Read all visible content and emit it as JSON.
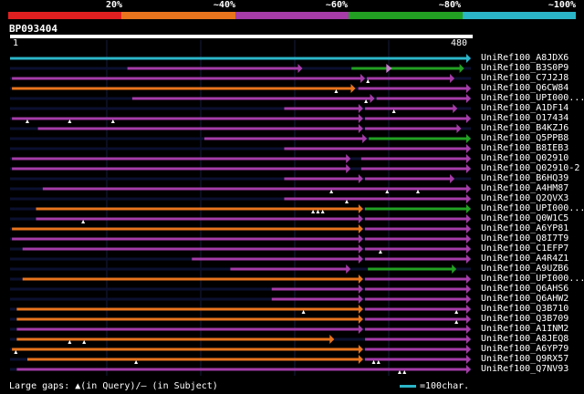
{
  "legend": {
    "labels": [
      "20%",
      "~40%",
      "~60%",
      "~80%",
      "~100%"
    ],
    "colors": [
      "#e02020",
      "#e8741e",
      "#a53ca8",
      "#22a022",
      "#2bb5c8"
    ]
  },
  "query": {
    "id": "BP093404",
    "start": "1",
    "end": "480",
    "length": 480
  },
  "footer": {
    "gaps_text": "Large gaps: ▲(in Query)/– (in Subject)",
    "scale_text": "=100char."
  },
  "hits": [
    {
      "name": "UniRef100_A8JDX6",
      "segments": [
        {
          "start": 1,
          "end": 480,
          "color": "#2bb5c8"
        }
      ],
      "markers": []
    },
    {
      "name": "UniRef100_B3S0P9",
      "segments": [
        {
          "start": 123,
          "end": 305,
          "color": "#a53ca8"
        },
        {
          "start": 356,
          "end": 473,
          "color": "#22a022"
        }
      ],
      "markers": [
        {
          "pos": 395,
          "type": "arrow"
        }
      ]
    },
    {
      "name": "UniRef100_C7J2J8",
      "segments": [
        {
          "start": 3,
          "end": 370,
          "color": "#a53ca8"
        },
        {
          "start": 372,
          "end": 463,
          "color": "#a53ca8"
        }
      ],
      "markers": [
        {
          "pos": 373,
          "type": "tri"
        }
      ]
    },
    {
      "name": "UniRef100_Q6CW84",
      "segments": [
        {
          "start": 3,
          "end": 360,
          "color": "#e8741e"
        },
        {
          "start": 363,
          "end": 480,
          "color": "#a53ca8"
        }
      ],
      "markers": [
        {
          "pos": 340,
          "type": "tri"
        }
      ]
    },
    {
      "name": "UniRef100_UPI000...",
      "segments": [
        {
          "start": 128,
          "end": 380,
          "color": "#a53ca8"
        },
        {
          "start": 382,
          "end": 480,
          "color": "#a53ca8"
        }
      ],
      "markers": [
        {
          "pos": 371,
          "type": "tri"
        }
      ]
    },
    {
      "name": "UniRef100_A1DF14",
      "segments": [
        {
          "start": 286,
          "end": 368,
          "color": "#a53ca8"
        },
        {
          "start": 370,
          "end": 466,
          "color": "#a53ca8"
        }
      ],
      "markers": [
        {
          "pos": 400,
          "type": "tri"
        }
      ]
    },
    {
      "name": "UniRef100_O17434",
      "segments": [
        {
          "start": 3,
          "end": 368,
          "color": "#a53ca8"
        },
        {
          "start": 370,
          "end": 480,
          "color": "#a53ca8"
        }
      ],
      "markers": [
        {
          "pos": 19,
          "type": "tri"
        },
        {
          "pos": 63,
          "type": "tri"
        },
        {
          "pos": 108,
          "type": "tri"
        }
      ]
    },
    {
      "name": "UniRef100_B4KZJ6",
      "segments": [
        {
          "start": 30,
          "end": 368,
          "color": "#a53ca8"
        },
        {
          "start": 370,
          "end": 470,
          "color": "#a53ca8"
        }
      ],
      "markers": []
    },
    {
      "name": "UniRef100_Q5PPB8",
      "segments": [
        {
          "start": 203,
          "end": 372,
          "color": "#a53ca8"
        },
        {
          "start": 374,
          "end": 480,
          "color": "#22a022"
        }
      ],
      "markers": []
    },
    {
      "name": "UniRef100_B8IEB3",
      "segments": [
        {
          "start": 286,
          "end": 480,
          "color": "#a53ca8"
        }
      ],
      "markers": []
    },
    {
      "name": "UniRef100_Q02910",
      "segments": [
        {
          "start": 3,
          "end": 355,
          "color": "#a53ca8"
        },
        {
          "start": 366,
          "end": 480,
          "color": "#a53ca8"
        }
      ],
      "markers": []
    },
    {
      "name": "UniRef100_Q02910-2",
      "segments": [
        {
          "start": 3,
          "end": 355,
          "color": "#a53ca8"
        },
        {
          "start": 366,
          "end": 480,
          "color": "#a53ca8"
        }
      ],
      "markers": []
    },
    {
      "name": "UniRef100_B6HQ39",
      "segments": [
        {
          "start": 286,
          "end": 368,
          "color": "#a53ca8"
        },
        {
          "start": 370,
          "end": 463,
          "color": "#a53ca8"
        }
      ],
      "markers": []
    },
    {
      "name": "UniRef100_A4HM87",
      "segments": [
        {
          "start": 35,
          "end": 480,
          "color": "#a53ca8"
        }
      ],
      "markers": [
        {
          "pos": 335,
          "type": "tri"
        },
        {
          "pos": 393,
          "type": "tri"
        },
        {
          "pos": 425,
          "type": "tri"
        }
      ]
    },
    {
      "name": "UniRef100_Q2QVX3",
      "segments": [
        {
          "start": 286,
          "end": 480,
          "color": "#a53ca8"
        }
      ],
      "markers": [
        {
          "pos": 351,
          "type": "tri"
        }
      ]
    },
    {
      "name": "UniRef100_UPI000...",
      "segments": [
        {
          "start": 28,
          "end": 368,
          "color": "#e8741e"
        },
        {
          "start": 370,
          "end": 480,
          "color": "#22a022"
        }
      ],
      "markers": [
        {
          "pos": 316,
          "type": "tri"
        },
        {
          "pos": 321,
          "type": "tri"
        },
        {
          "pos": 326,
          "type": "tri"
        }
      ]
    },
    {
      "name": "UniRef100_Q0W1C5",
      "segments": [
        {
          "start": 28,
          "end": 368,
          "color": "#a53ca8"
        },
        {
          "start": 370,
          "end": 480,
          "color": "#a53ca8"
        }
      ],
      "markers": [
        {
          "pos": 77,
          "type": "tri"
        }
      ]
    },
    {
      "name": "UniRef100_A6YP81",
      "segments": [
        {
          "start": 3,
          "end": 368,
          "color": "#e8741e"
        },
        {
          "start": 370,
          "end": 480,
          "color": "#a53ca8"
        }
      ],
      "markers": []
    },
    {
      "name": "UniRef100_Q8I7T9",
      "segments": [
        {
          "start": 3,
          "end": 368,
          "color": "#a53ca8"
        },
        {
          "start": 370,
          "end": 480,
          "color": "#a53ca8"
        }
      ],
      "markers": []
    },
    {
      "name": "UniRef100_C1EFP7",
      "segments": [
        {
          "start": 14,
          "end": 368,
          "color": "#a53ca8"
        },
        {
          "start": 370,
          "end": 480,
          "color": "#a53ca8"
        }
      ],
      "markers": [
        {
          "pos": 386,
          "type": "tri"
        }
      ]
    },
    {
      "name": "UniRef100_A4R4Z1",
      "segments": [
        {
          "start": 190,
          "end": 368,
          "color": "#a53ca8"
        },
        {
          "start": 370,
          "end": 480,
          "color": "#a53ca8"
        }
      ],
      "markers": []
    },
    {
      "name": "UniRef100_A9UZB6",
      "segments": [
        {
          "start": 230,
          "end": 355,
          "color": "#a53ca8"
        },
        {
          "start": 373,
          "end": 465,
          "color": "#22a022"
        }
      ],
      "markers": []
    },
    {
      "name": "UniRef100_UPI000...",
      "segments": [
        {
          "start": 14,
          "end": 368,
          "color": "#e8741e"
        },
        {
          "start": 370,
          "end": 480,
          "color": "#a53ca8"
        }
      ],
      "markers": []
    },
    {
      "name": "UniRef100_Q6AHS6",
      "segments": [
        {
          "start": 273,
          "end": 368,
          "color": "#a53ca8"
        },
        {
          "start": 370,
          "end": 480,
          "color": "#a53ca8"
        }
      ],
      "markers": []
    },
    {
      "name": "UniRef100_Q6AHW2",
      "segments": [
        {
          "start": 273,
          "end": 368,
          "color": "#a53ca8"
        },
        {
          "start": 370,
          "end": 480,
          "color": "#a53ca8"
        }
      ],
      "markers": []
    },
    {
      "name": "UniRef100_Q3B710",
      "segments": [
        {
          "start": 8,
          "end": 368,
          "color": "#e8741e"
        },
        {
          "start": 370,
          "end": 480,
          "color": "#a53ca8"
        }
      ],
      "markers": [
        {
          "pos": 306,
          "type": "tri"
        },
        {
          "pos": 465,
          "type": "tri"
        }
      ]
    },
    {
      "name": "UniRef100_Q3B709",
      "segments": [
        {
          "start": 8,
          "end": 368,
          "color": "#e8741e"
        },
        {
          "start": 370,
          "end": 480,
          "color": "#a53ca8"
        }
      ],
      "markers": [
        {
          "pos": 465,
          "type": "tri"
        }
      ]
    },
    {
      "name": "UniRef100_A1INM2",
      "segments": [
        {
          "start": 8,
          "end": 368,
          "color": "#a53ca8"
        },
        {
          "start": 370,
          "end": 480,
          "color": "#a53ca8"
        }
      ],
      "markers": []
    },
    {
      "name": "UniRef100_A8JEQ8",
      "segments": [
        {
          "start": 8,
          "end": 338,
          "color": "#e8741e"
        },
        {
          "start": 370,
          "end": 480,
          "color": "#a53ca8"
        }
      ],
      "markers": [
        {
          "pos": 63,
          "type": "tri"
        },
        {
          "pos": 78,
          "type": "tri"
        }
      ]
    },
    {
      "name": "UniRef100_A6YP79",
      "segments": [
        {
          "start": 3,
          "end": 368,
          "color": "#e8741e"
        },
        {
          "start": 370,
          "end": 480,
          "color": "#a53ca8"
        }
      ],
      "markers": [
        {
          "pos": 7,
          "type": "tri"
        }
      ]
    },
    {
      "name": "UniRef100_Q9RX57",
      "segments": [
        {
          "start": 19,
          "end": 368,
          "color": "#e8741e"
        },
        {
          "start": 370,
          "end": 480,
          "color": "#a53ca8"
        }
      ],
      "markers": [
        {
          "pos": 132,
          "type": "tri"
        },
        {
          "pos": 379,
          "type": "tri"
        },
        {
          "pos": 384,
          "type": "tri"
        }
      ]
    },
    {
      "name": "UniRef100_Q7NV93",
      "segments": [
        {
          "start": 8,
          "end": 480,
          "color": "#a53ca8"
        }
      ],
      "markers": [
        {
          "pos": 406,
          "type": "tri"
        },
        {
          "pos": 411,
          "type": "tri"
        }
      ]
    }
  ]
}
